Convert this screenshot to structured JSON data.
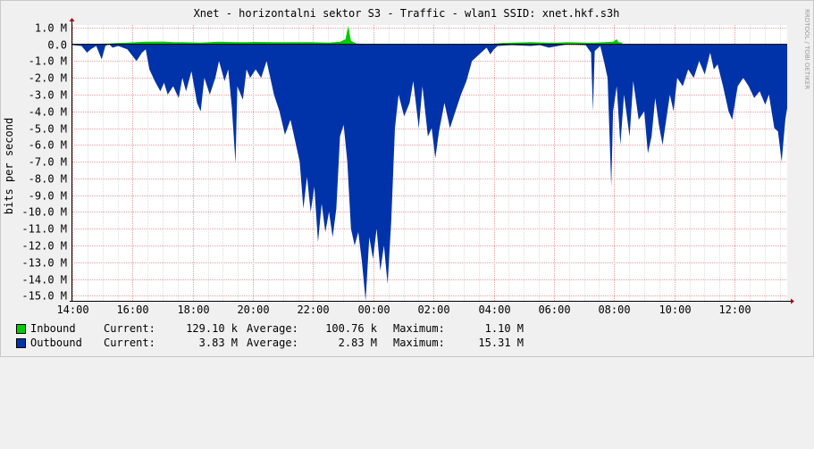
{
  "chart_data": {
    "type": "area",
    "title": "Xnet - horizontalni sektor S3 - Traffic - wlan1 SSID: xnet.hkf.s3h",
    "ylabel": "bits per second",
    "watermark": "RRDTOOL / TOBI OETIKER",
    "ylim": [
      -15.3,
      1.15
    ],
    "y_ticks": [
      1,
      0,
      -1,
      -2,
      -3,
      -4,
      -5,
      -6,
      -7,
      -8,
      -9,
      -10,
      -11,
      -12,
      -13,
      -14,
      -15
    ],
    "y_tick_labels": [
      "1.0 M",
      "0.0",
      "-1.0 M",
      "-2.0 M",
      "-3.0 M",
      "-4.0 M",
      "-5.0 M",
      "-6.0 M",
      "-7.0 M",
      "-8.0 M",
      "-9.0 M",
      "-10.0 M",
      "-11.0 M",
      "-12.0 M",
      "-13.0 M",
      "-14.0 M",
      "-15.0 M"
    ],
    "x_unit": "hours since 14:00",
    "x_ticks": [
      0,
      2,
      4,
      6,
      8,
      10,
      12,
      14,
      16,
      18,
      20,
      22
    ],
    "x_tick_labels": [
      "14:00",
      "16:00",
      "18:00",
      "20:00",
      "22:00",
      "00:00",
      "02:00",
      "04:00",
      "06:00",
      "08:00",
      "10:00",
      "12:00"
    ],
    "grid": true,
    "series": [
      {
        "name": "Inbound",
        "color": "#00cc00",
        "points": [
          [
            0,
            0.01
          ],
          [
            0.5,
            0.02
          ],
          [
            1.5,
            0.03
          ],
          [
            2,
            0.05
          ],
          [
            2.5,
            0.08
          ],
          [
            3,
            0.1
          ],
          [
            3.5,
            0.12
          ],
          [
            4,
            0.15
          ],
          [
            5,
            0.16
          ],
          [
            5.5,
            0.12
          ],
          [
            6,
            0.13
          ],
          [
            7,
            0.1
          ],
          [
            8,
            0.15
          ],
          [
            9,
            0.12
          ],
          [
            9.5,
            0.12
          ],
          [
            10,
            0.14
          ],
          [
            11,
            0.13
          ],
          [
            11.5,
            0.12
          ],
          [
            12,
            0.13
          ],
          [
            13,
            0.12
          ],
          [
            14,
            0.1
          ],
          [
            14.6,
            0.15
          ],
          [
            14.9,
            0.3
          ],
          [
            15.05,
            1.1
          ],
          [
            15.2,
            0.2
          ],
          [
            15.5,
            0.05
          ],
          [
            16,
            0.02
          ],
          [
            17,
            0.01
          ],
          [
            20,
            0.01
          ],
          [
            22.5,
            0.01
          ],
          [
            23,
            0.03
          ],
          [
            23.5,
            0.08
          ],
          [
            24,
            0.1
          ],
          [
            25,
            0.12
          ],
          [
            26,
            0.1
          ],
          [
            26.5,
            0.1
          ],
          [
            27,
            0.12
          ],
          [
            28,
            0.1
          ],
          [
            28.5,
            0.1
          ],
          [
            29,
            0.12
          ],
          [
            29.5,
            0.15
          ],
          [
            29.7,
            0.3
          ],
          [
            29.8,
            0.12
          ],
          [
            30,
            0.1
          ]
        ]
      },
      {
        "name": "Outbound",
        "color": "#0033aa",
        "points": [
          [
            0,
            -0.05
          ],
          [
            0.5,
            -0.1
          ],
          [
            0.8,
            -0.5
          ],
          [
            1,
            -0.3
          ],
          [
            1.3,
            -0.1
          ],
          [
            1.6,
            -0.9
          ],
          [
            1.8,
            -0.1
          ],
          [
            2,
            0
          ],
          [
            2.2,
            -0.2
          ],
          [
            2.5,
            -0.1
          ],
          [
            3,
            -0.3
          ],
          [
            3.5,
            -1.0
          ],
          [
            3.8,
            -0.5
          ],
          [
            4,
            -0.3
          ],
          [
            4.2,
            -1.5
          ],
          [
            4.5,
            -2.2
          ],
          [
            4.8,
            -2.8
          ],
          [
            5,
            -2.3
          ],
          [
            5.2,
            -3.0
          ],
          [
            5.5,
            -2.5
          ],
          [
            5.8,
            -3.2
          ],
          [
            6,
            -2.0
          ],
          [
            6.2,
            -2.8
          ],
          [
            6.5,
            -1.6
          ],
          [
            6.8,
            -3.5
          ],
          [
            7,
            -4.0
          ],
          [
            7.2,
            -2.0
          ],
          [
            7.5,
            -3.0
          ],
          [
            7.8,
            -2.0
          ],
          [
            8,
            -1.0
          ],
          [
            8.3,
            -2.2
          ],
          [
            8.5,
            -1.5
          ],
          [
            8.7,
            -3.8
          ],
          [
            8.9,
            -7.1
          ],
          [
            9.0,
            -2.5
          ],
          [
            9.3,
            -3.3
          ],
          [
            9.5,
            -1.5
          ],
          [
            9.7,
            -2.0
          ],
          [
            10,
            -1.5
          ],
          [
            10.3,
            -2.0
          ],
          [
            10.6,
            -1.0
          ],
          [
            11,
            -3.0
          ],
          [
            11.3,
            -4.0
          ],
          [
            11.6,
            -5.4
          ],
          [
            11.9,
            -4.5
          ],
          [
            12.1,
            -5.5
          ],
          [
            12.4,
            -7.0
          ],
          [
            12.6,
            -9.8
          ],
          [
            12.8,
            -7.9
          ],
          [
            13.0,
            -10.0
          ],
          [
            13.2,
            -8.5
          ],
          [
            13.4,
            -11.8
          ],
          [
            13.6,
            -9.5
          ],
          [
            13.8,
            -11.2
          ],
          [
            14.0,
            -10.0
          ],
          [
            14.2,
            -11.5
          ],
          [
            14.4,
            -9.8
          ],
          [
            14.6,
            -5.5
          ],
          [
            14.8,
            -4.8
          ],
          [
            15.0,
            -7.0
          ],
          [
            15.2,
            -11.0
          ],
          [
            15.4,
            -12.0
          ],
          [
            15.6,
            -11.2
          ],
          [
            15.8,
            -13.0
          ],
          [
            16.0,
            -15.3
          ],
          [
            16.2,
            -11.5
          ],
          [
            16.4,
            -12.8
          ],
          [
            16.6,
            -11.0
          ],
          [
            16.8,
            -13.5
          ],
          [
            17.0,
            -12.0
          ],
          [
            17.2,
            -14.3
          ],
          [
            17.4,
            -10.5
          ],
          [
            17.6,
            -5.0
          ],
          [
            17.8,
            -3.0
          ],
          [
            18.1,
            -4.3
          ],
          [
            18.4,
            -3.5
          ],
          [
            18.6,
            -2.2
          ],
          [
            18.9,
            -5.0
          ],
          [
            19.1,
            -2.5
          ],
          [
            19.4,
            -5.5
          ],
          [
            19.6,
            -5.0
          ],
          [
            19.8,
            -6.8
          ],
          [
            20.0,
            -5.2
          ],
          [
            20.3,
            -3.5
          ],
          [
            20.6,
            -5.0
          ],
          [
            20.9,
            -4.0
          ],
          [
            21.2,
            -3.0
          ],
          [
            21.5,
            -2.2
          ],
          [
            21.8,
            -1.0
          ],
          [
            22.0,
            -0.8
          ],
          [
            22.3,
            -0.5
          ],
          [
            22.6,
            -0.2
          ],
          [
            22.8,
            -0.6
          ],
          [
            23.0,
            -0.3
          ],
          [
            23.2,
            -0.1
          ],
          [
            24,
            -0.05
          ],
          [
            25,
            -0.1
          ],
          [
            25.5,
            -0.05
          ],
          [
            26,
            -0.2
          ],
          [
            26.5,
            -0.1
          ],
          [
            27,
            0
          ],
          [
            28,
            -0.05
          ],
          [
            28.3,
            -0.5
          ],
          [
            28.4,
            -4.0
          ],
          [
            28.5,
            -0.4
          ],
          [
            28.8,
            -0.1
          ],
          [
            29.0,
            -1.0
          ],
          [
            29.2,
            -2.0
          ],
          [
            29.4,
            -8.5
          ],
          [
            29.5,
            -4.0
          ],
          [
            29.7,
            -2.5
          ],
          [
            29.9,
            -6.0
          ],
          [
            30.1,
            -3.0
          ],
          [
            30.4,
            -5.5
          ],
          [
            30.6,
            -2.2
          ],
          [
            30.9,
            -4.5
          ],
          [
            31.2,
            -4.0
          ],
          [
            31.4,
            -6.5
          ],
          [
            31.6,
            -5.5
          ],
          [
            31.8,
            -3.2
          ],
          [
            32.0,
            -4.8
          ],
          [
            32.2,
            -6.0
          ],
          [
            32.4,
            -4.5
          ],
          [
            32.6,
            -3.0
          ],
          [
            32.8,
            -4.0
          ],
          [
            33.0,
            -2.0
          ],
          [
            33.3,
            -2.5
          ],
          [
            33.6,
            -1.5
          ],
          [
            33.9,
            -2.0
          ],
          [
            34.2,
            -1.0
          ],
          [
            34.5,
            -1.8
          ],
          [
            34.8,
            -0.5
          ],
          [
            35.0,
            -1.5
          ],
          [
            35.2,
            -1.2
          ],
          [
            35.5,
            -2.5
          ],
          [
            35.8,
            -4.0
          ],
          [
            36.0,
            -4.5
          ],
          [
            36.3,
            -2.5
          ],
          [
            36.6,
            -2.0
          ],
          [
            36.9,
            -2.5
          ],
          [
            37.2,
            -3.2
          ],
          [
            37.5,
            -2.8
          ],
          [
            37.8,
            -3.6
          ],
          [
            38.0,
            -3.0
          ],
          [
            38.3,
            -5.0
          ],
          [
            38.5,
            -5.2
          ],
          [
            38.7,
            -7.0
          ],
          [
            38.9,
            -4.5
          ],
          [
            39.0,
            -3.8
          ]
        ]
      }
    ]
  },
  "legend": {
    "inbound": {
      "label": "Inbound",
      "current_label": "Current:",
      "current": "129.10 k",
      "average_label": "Average:",
      "average": "100.76 k",
      "maximum_label": "Maximum:",
      "maximum": "1.10 M",
      "color": "#00cc00"
    },
    "outbound": {
      "label": "Outbound",
      "current_label": "Current:",
      "current": "3.83 M",
      "average_label": "Average:",
      "average": "2.83 M",
      "maximum_label": "Maximum:",
      "maximum": "15.31 M",
      "color": "#0033aa"
    }
  }
}
